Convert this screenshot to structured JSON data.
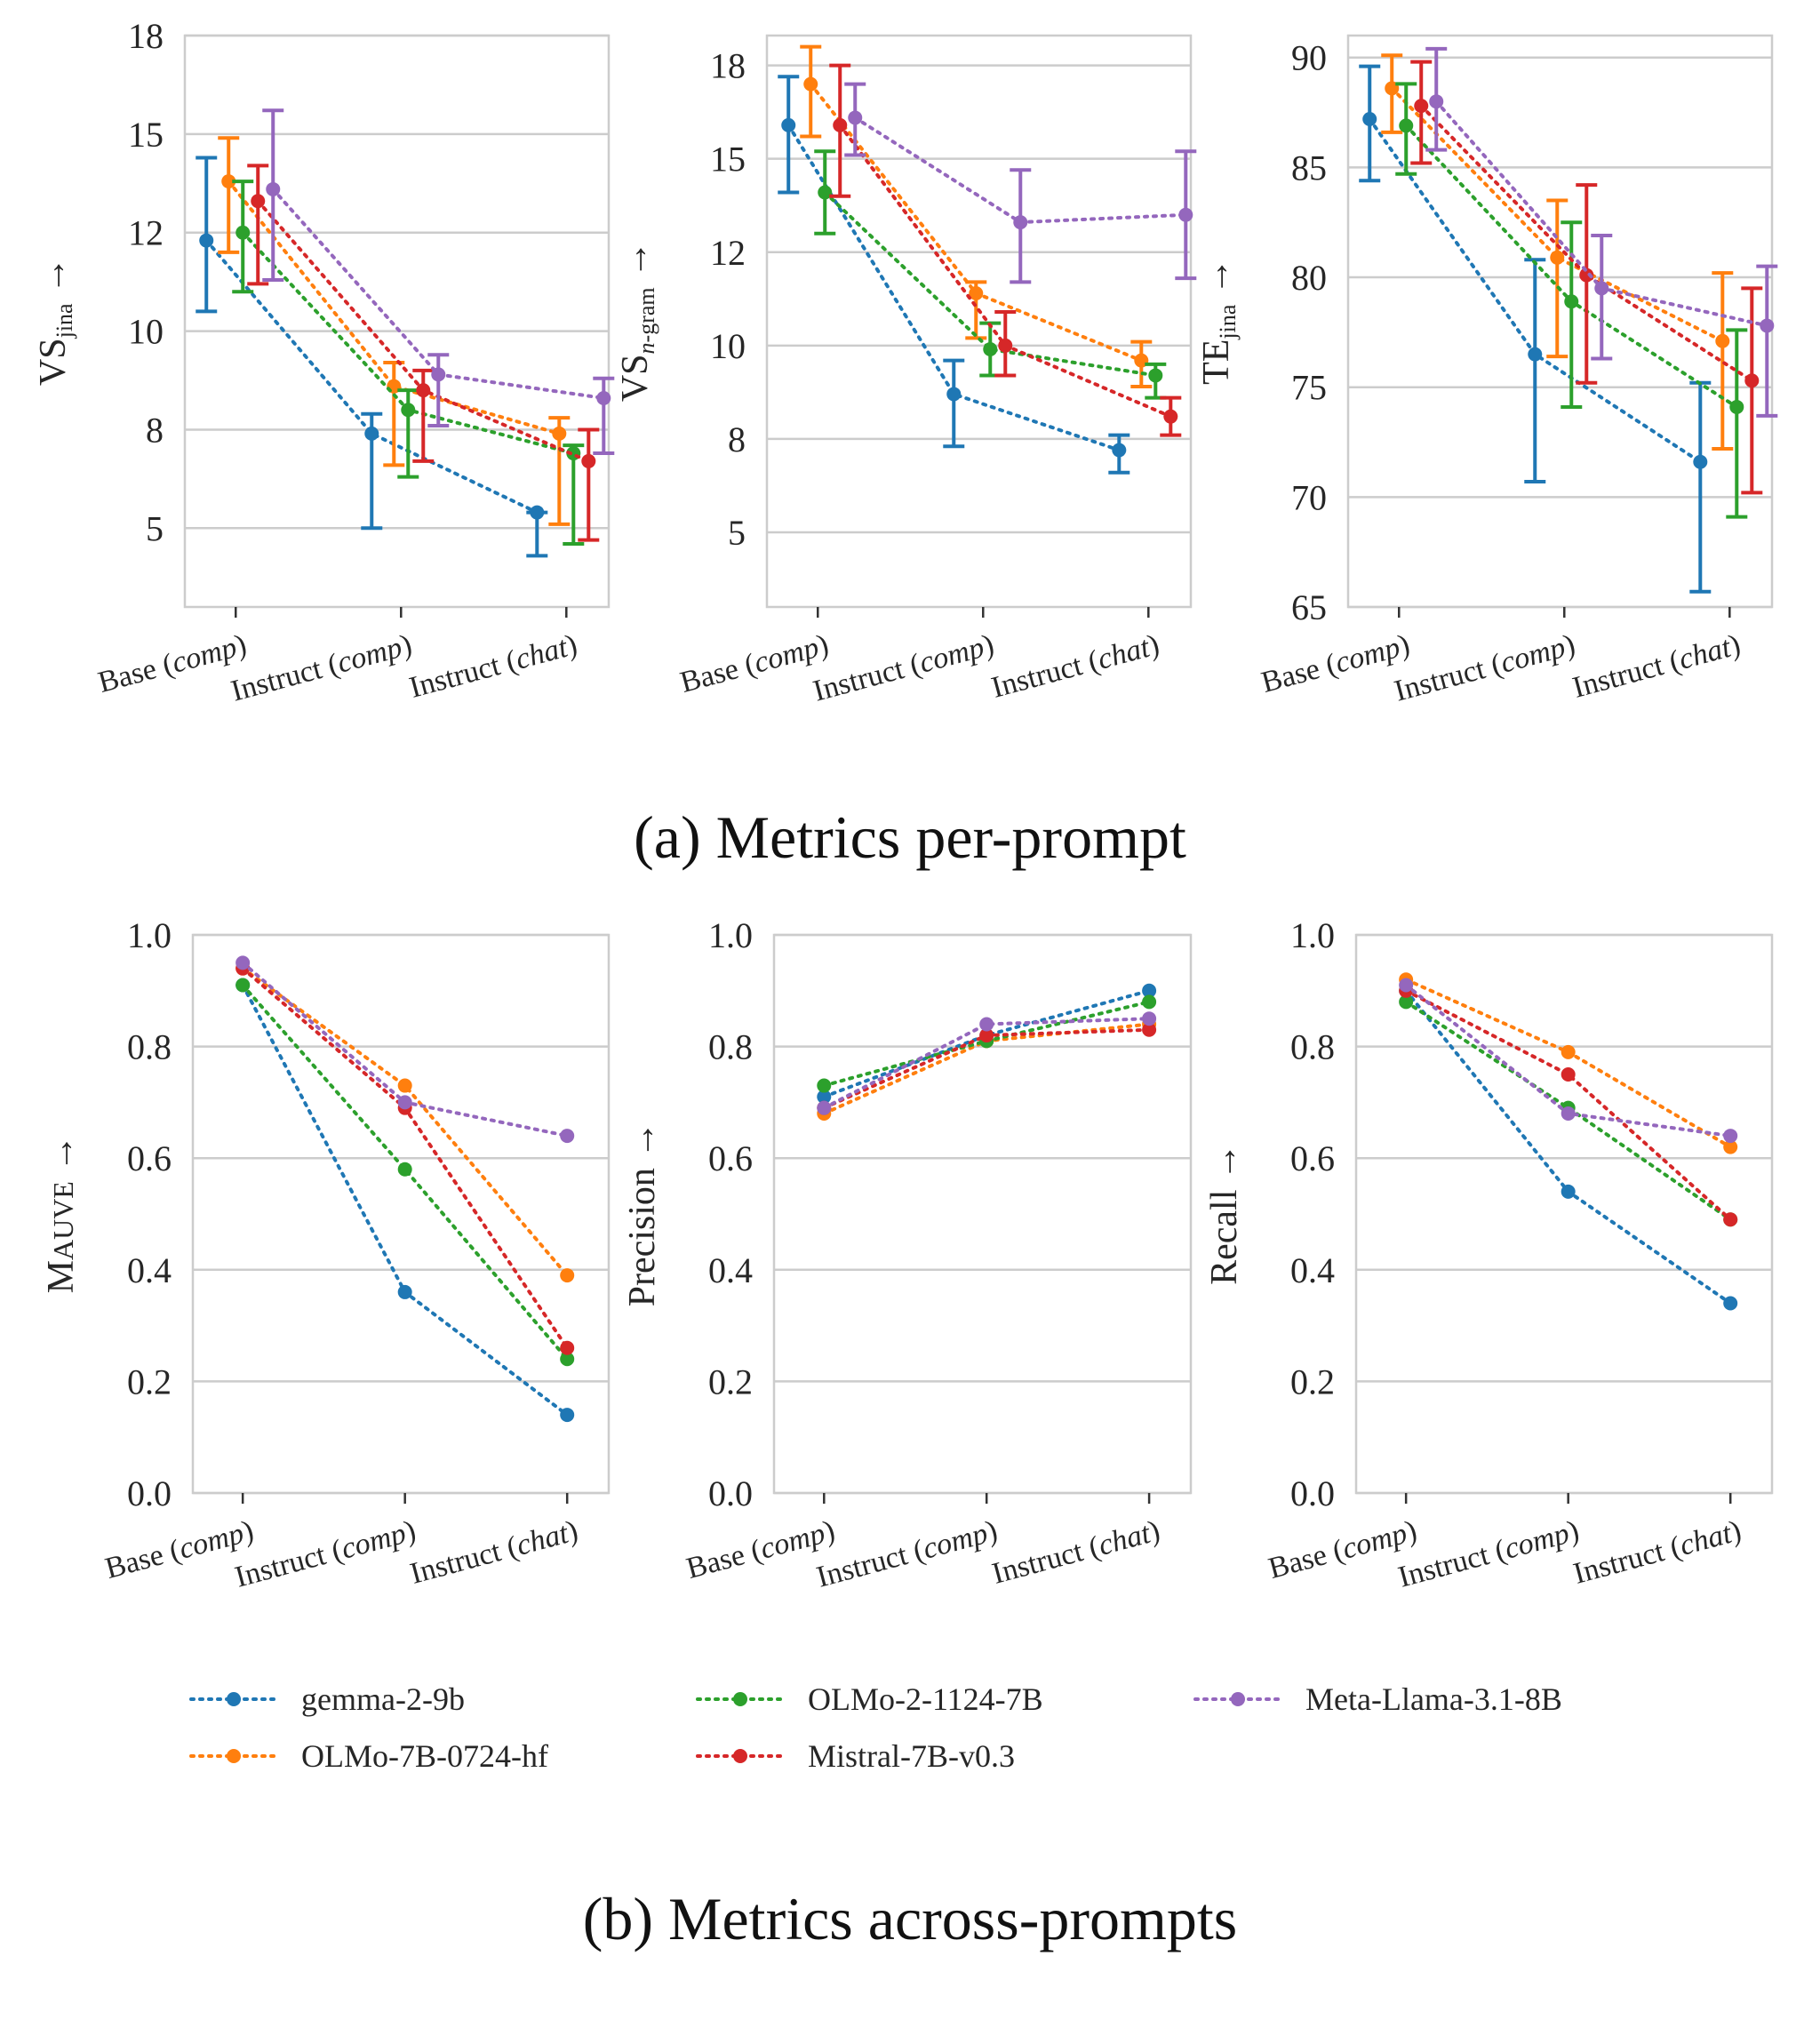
{
  "figure": {
    "caption_a": "(a) Metrics per-prompt",
    "caption_b": "(b) Metrics across-prompts"
  },
  "colors": {
    "gemma-2-9b": "#1f77b4",
    "OLMo-7B-0724-hf": "#ff7f0e",
    "OLMo-2-1124-7B": "#2ca02c",
    "Mistral-7B-v0.3": "#d62728",
    "Meta-Llama-3.1-8B": "#9467bd",
    "grid": "#cccccc",
    "spine": "#cccccc"
  },
  "legend": [
    "gemma-2-9b",
    "OLMo-7B-0724-hf",
    "OLMo-2-1124-7B",
    "Mistral-7B-v0.3",
    "Meta-Llama-3.1-8B"
  ],
  "chart_data": [
    {
      "type": "line",
      "panel": "a1",
      "title": "",
      "ylabel": "VS",
      "ylabel_sub": "jina",
      "ylabel_arrow": "→",
      "categories": [
        "Base (comp)",
        "Instruct (comp)",
        "Instruct (chat)"
      ],
      "category_parts": [
        [
          "Base (",
          "comp",
          ")"
        ],
        [
          "Instruct (",
          "comp",
          ")"
        ],
        [
          "Instruct (",
          "chat",
          ")"
        ]
      ],
      "ylim": [
        3.0,
        17.5
      ],
      "yticks": [
        5,
        7.5,
        10,
        12.5,
        15,
        17.5
      ],
      "ytick_labels": [
        "5",
        "8",
        "10",
        "12",
        "15",
        "18"
      ],
      "error_bars": true,
      "series": [
        {
          "name": "gemma-2-9b",
          "values": [
            12.3,
            7.4,
            5.4
          ],
          "lower": [
            10.5,
            5.0,
            4.3
          ],
          "upper": [
            14.4,
            7.9,
            5.4
          ]
        },
        {
          "name": "OLMo-7B-0724-hf",
          "values": [
            13.8,
            8.6,
            7.4
          ],
          "lower": [
            12.0,
            6.6,
            5.1
          ],
          "upper": [
            14.9,
            9.2,
            7.8
          ]
        },
        {
          "name": "OLMo-2-1124-7B",
          "values": [
            12.5,
            8.0,
            6.9
          ],
          "lower": [
            11.0,
            6.3,
            4.6
          ],
          "upper": [
            13.8,
            8.5,
            7.1
          ]
        },
        {
          "name": "Mistral-7B-v0.3",
          "values": [
            13.3,
            8.5,
            6.7
          ],
          "lower": [
            11.2,
            6.7,
            4.7
          ],
          "upper": [
            14.2,
            9.0,
            7.5
          ]
        },
        {
          "name": "Meta-Llama-3.1-8B",
          "values": [
            13.6,
            8.9,
            8.3
          ],
          "lower": [
            11.3,
            7.6,
            6.9
          ],
          "upper": [
            15.6,
            9.4,
            8.8
          ]
        }
      ]
    },
    {
      "type": "line",
      "panel": "a2",
      "title": "",
      "ylabel": "VS",
      "ylabel_sub": "n-gram",
      "ylabel_arrow": "→",
      "categories": [
        "Base (comp)",
        "Instruct (comp)",
        "Instruct (chat)"
      ],
      "category_parts": [
        [
          "Base (",
          "comp",
          ")"
        ],
        [
          "Instruct (",
          "comp",
          ")"
        ],
        [
          "Instruct (",
          "chat",
          ")"
        ]
      ],
      "ylim": [
        3.0,
        18.3
      ],
      "yticks": [
        5,
        7.5,
        10,
        12.5,
        15,
        17.5
      ],
      "ytick_labels": [
        "5",
        "8",
        "10",
        "12",
        "15",
        "18"
      ],
      "error_bars": true,
      "series": [
        {
          "name": "gemma-2-9b",
          "values": [
            15.9,
            8.7,
            7.2
          ],
          "lower": [
            14.1,
            7.3,
            6.6
          ],
          "upper": [
            17.2,
            9.6,
            7.6
          ]
        },
        {
          "name": "OLMo-7B-0724-hf",
          "values": [
            17.0,
            11.4,
            9.6
          ],
          "lower": [
            15.6,
            10.2,
            8.9
          ],
          "upper": [
            18.0,
            11.7,
            10.1
          ]
        },
        {
          "name": "OLMo-2-1124-7B",
          "values": [
            14.1,
            9.9,
            9.2
          ],
          "lower": [
            13.0,
            9.2,
            8.6
          ],
          "upper": [
            15.2,
            10.6,
            9.5
          ]
        },
        {
          "name": "Mistral-7B-v0.3",
          "values": [
            15.9,
            10.0,
            8.1
          ],
          "lower": [
            14.0,
            9.2,
            7.6
          ],
          "upper": [
            17.5,
            10.9,
            8.6
          ]
        },
        {
          "name": "Meta-Llama-3.1-8B",
          "values": [
            16.1,
            13.3,
            13.5
          ],
          "lower": [
            15.1,
            11.7,
            11.8
          ],
          "upper": [
            17.0,
            14.7,
            15.2
          ]
        }
      ]
    },
    {
      "type": "line",
      "panel": "a3",
      "title": "",
      "ylabel": "TE",
      "ylabel_sub": "jina",
      "ylabel_arrow": "→",
      "categories": [
        "Base (comp)",
        "Instruct (comp)",
        "Instruct (chat)"
      ],
      "category_parts": [
        [
          "Base (",
          "comp",
          ")"
        ],
        [
          "Instruct (",
          "comp",
          ")"
        ],
        [
          "Instruct (",
          "chat",
          ")"
        ]
      ],
      "ylim": [
        65,
        91
      ],
      "yticks": [
        65,
        70,
        75,
        80,
        85,
        90
      ],
      "ytick_labels": [
        "65",
        "70",
        "75",
        "80",
        "85",
        "90"
      ],
      "error_bars": true,
      "series": [
        {
          "name": "gemma-2-9b",
          "values": [
            87.2,
            76.5,
            71.6
          ],
          "lower": [
            84.4,
            70.7,
            65.7
          ],
          "upper": [
            89.6,
            80.8,
            75.2
          ]
        },
        {
          "name": "OLMo-7B-0724-hf",
          "values": [
            88.6,
            80.9,
            77.1
          ],
          "lower": [
            86.6,
            76.4,
            72.2
          ],
          "upper": [
            90.1,
            83.5,
            80.2
          ]
        },
        {
          "name": "OLMo-2-1124-7B",
          "values": [
            86.9,
            78.9,
            74.1
          ],
          "lower": [
            84.7,
            74.1,
            69.1
          ],
          "upper": [
            88.8,
            82.5,
            77.6
          ]
        },
        {
          "name": "Mistral-7B-v0.3",
          "values": [
            87.8,
            80.1,
            75.3
          ],
          "lower": [
            85.2,
            75.2,
            70.2
          ],
          "upper": [
            89.8,
            84.2,
            79.5
          ]
        },
        {
          "name": "Meta-Llama-3.1-8B",
          "values": [
            88.0,
            79.5,
            77.8
          ],
          "lower": [
            85.8,
            76.3,
            73.7
          ],
          "upper": [
            90.4,
            81.9,
            80.5
          ]
        }
      ]
    },
    {
      "type": "line",
      "panel": "b1",
      "title": "",
      "ylabel": "MAUVE",
      "ylabel_smallcaps": true,
      "ylabel_arrow": "→",
      "categories": [
        "Base (comp)",
        "Instruct (comp)",
        "Instruct (chat)"
      ],
      "category_parts": [
        [
          "Base (",
          "comp",
          ")"
        ],
        [
          "Instruct (",
          "comp",
          ")"
        ],
        [
          "Instruct (",
          "chat",
          ")"
        ]
      ],
      "ylim": [
        0.0,
        1.0
      ],
      "yticks": [
        0.0,
        0.2,
        0.4,
        0.6,
        0.8,
        1.0
      ],
      "ytick_labels": [
        "0.0",
        "0.2",
        "0.4",
        "0.6",
        "0.8",
        "1.0"
      ],
      "error_bars": false,
      "series": [
        {
          "name": "gemma-2-9b",
          "values": [
            0.91,
            0.36,
            0.14
          ]
        },
        {
          "name": "OLMo-7B-0724-hf",
          "values": [
            0.94,
            0.73,
            0.39
          ]
        },
        {
          "name": "OLMo-2-1124-7B",
          "values": [
            0.91,
            0.58,
            0.24
          ]
        },
        {
          "name": "Mistral-7B-v0.3",
          "values": [
            0.94,
            0.69,
            0.26
          ]
        },
        {
          "name": "Meta-Llama-3.1-8B",
          "values": [
            0.95,
            0.7,
            0.64
          ]
        }
      ]
    },
    {
      "type": "line",
      "panel": "b2",
      "title": "",
      "ylabel": "Precision",
      "ylabel_arrow": "→",
      "categories": [
        "Base (comp)",
        "Instruct (comp)",
        "Instruct (chat)"
      ],
      "category_parts": [
        [
          "Base (",
          "comp",
          ")"
        ],
        [
          "Instruct (",
          "comp",
          ")"
        ],
        [
          "Instruct (",
          "chat",
          ")"
        ]
      ],
      "ylim": [
        0.0,
        1.0
      ],
      "yticks": [
        0.0,
        0.2,
        0.4,
        0.6,
        0.8,
        1.0
      ],
      "ytick_labels": [
        "0.0",
        "0.2",
        "0.4",
        "0.6",
        "0.8",
        "1.0"
      ],
      "error_bars": false,
      "series": [
        {
          "name": "gemma-2-9b",
          "values": [
            0.71,
            0.82,
            0.9
          ]
        },
        {
          "name": "OLMo-7B-0724-hf",
          "values": [
            0.68,
            0.81,
            0.84
          ]
        },
        {
          "name": "OLMo-2-1124-7B",
          "values": [
            0.73,
            0.81,
            0.88
          ]
        },
        {
          "name": "Mistral-7B-v0.3",
          "values": [
            0.69,
            0.82,
            0.83
          ]
        },
        {
          "name": "Meta-Llama-3.1-8B",
          "values": [
            0.69,
            0.84,
            0.85
          ]
        }
      ]
    },
    {
      "type": "line",
      "panel": "b3",
      "title": "",
      "ylabel": "Recall",
      "ylabel_arrow": "→",
      "categories": [
        "Base (comp)",
        "Instruct (comp)",
        "Instruct (chat)"
      ],
      "category_parts": [
        [
          "Base (",
          "comp",
          ")"
        ],
        [
          "Instruct (",
          "comp",
          ")"
        ],
        [
          "Instruct (",
          "chat",
          ")"
        ]
      ],
      "ylim": [
        0.0,
        1.0
      ],
      "yticks": [
        0.0,
        0.2,
        0.4,
        0.6,
        0.8,
        1.0
      ],
      "ytick_labels": [
        "0.0",
        "0.2",
        "0.4",
        "0.6",
        "0.8",
        "1.0"
      ],
      "error_bars": false,
      "series": [
        {
          "name": "gemma-2-9b",
          "values": [
            0.9,
            0.54,
            0.34
          ]
        },
        {
          "name": "OLMo-7B-0724-hf",
          "values": [
            0.92,
            0.79,
            0.62
          ]
        },
        {
          "name": "OLMo-2-1124-7B",
          "values": [
            0.88,
            0.69,
            0.49
          ]
        },
        {
          "name": "Mistral-7B-v0.3",
          "values": [
            0.9,
            0.75,
            0.49
          ]
        },
        {
          "name": "Meta-Llama-3.1-8B",
          "values": [
            0.91,
            0.68,
            0.64
          ]
        }
      ]
    }
  ]
}
